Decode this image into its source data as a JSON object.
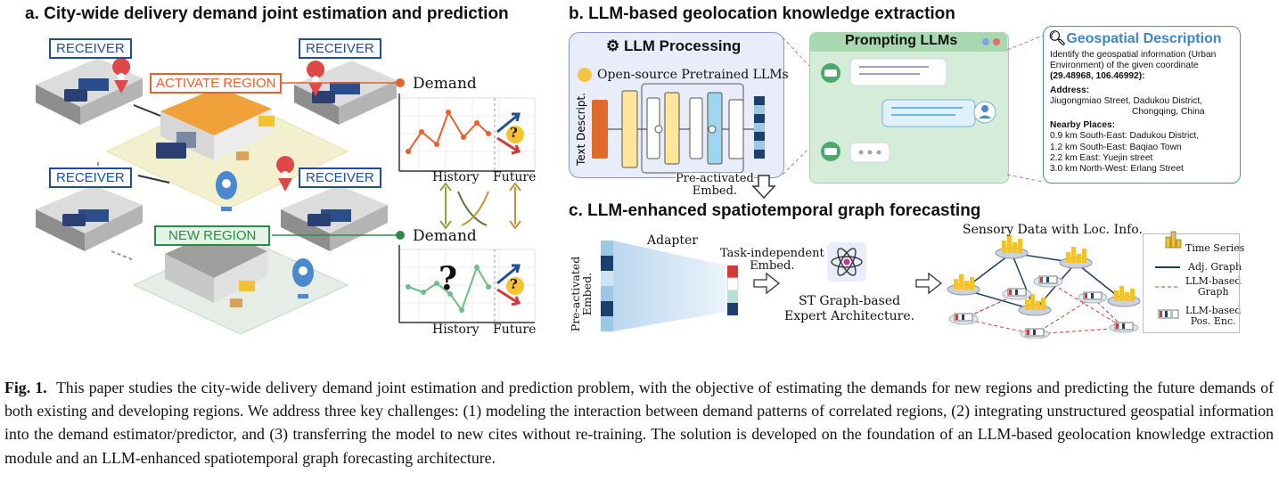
{
  "panel_a": {
    "title": "a. City-wide delivery demand joint estimation and prediction",
    "receiver_label": "RECEIVER",
    "activate_region": "ACTIVATE REGION",
    "new_region": "NEW REGION",
    "demand_label": "Demand",
    "history_label": "History",
    "future_label": "Future",
    "question_mark": "?"
  },
  "panel_b": {
    "title": "b. LLM-based geolocation knowledge extraction",
    "llm_processing": "LLM Processing",
    "open_source": "Open-source Pretrained LLMs",
    "text_descript": "Text Descript.",
    "pre_activated_embed_1": "Pre-activated",
    "pre_activated_embed_2": "Embed.",
    "prompting_llms": "Prompting LLMs",
    "geo_title": "Geospatial Description",
    "geo_intro_1": "Identify the geospatial information (Urban",
    "geo_intro_2": "Environment) of the given coordinate",
    "geo_coord": "(29.48968, 106.46992):",
    "address_label": "Address:",
    "address_1": "Jiugongmiao Street, Dadukou District,",
    "address_2": "Chongqing, China",
    "nearby_label": "Nearby Places:",
    "nearby": [
      "0.9 km South-East: Dadukou District,",
      "1.2 km South-East: Baqiao Town",
      "2.2 km East: Yuejin street",
      "3.0 km North-West: Erlang Street"
    ]
  },
  "panel_c": {
    "title": "c. LLM-enhanced spatiotemporal graph forecasting",
    "pre_activated": "Pre-activated",
    "embed": "Embed.",
    "adapter": "Adapter",
    "task_independent": "Task-independent",
    "task_embed": "Embed.",
    "st_graph_1": "ST Graph-based",
    "st_graph_2": "Expert Architecture.",
    "sensory": "Sensory Data with Loc. Info.",
    "legend": {
      "time_series": "Time Series",
      "adj_graph": "Adj. Graph",
      "llm_graph_1": "LLM-based",
      "llm_graph_2": "Graph",
      "llm_pos_1": "LLM-based",
      "llm_pos_2": "Pos. Enc."
    }
  },
  "caption": {
    "label": "Fig. 1.",
    "text": "This paper studies the city-wide delivery demand joint estimation and prediction problem, with the objective of estimating the demands for new regions and predicting the future demands of both existing and developing regions. We address three key challenges: (1) modeling the interaction between demand patterns of correlated regions, (2) integrating unstructured geospatial information into the demand estimator/predictor, and (3) transferring the model to new cites without re-training. The solution is developed on the foundation of an LLM-based geolocation knowledge extraction module and an LLM-enhanced spatiotemporal graph forecasting architecture."
  },
  "colors": {
    "receiver_blue": "#1f4e9a",
    "activate_orange": "#e8612c",
    "new_green": "#2f8a4a",
    "panel_lavender": "#e9ecf9",
    "prompt_green": "#d5ecd9",
    "embed_dark": "#1d3f6e",
    "embed_light": "#9cc8e3"
  }
}
